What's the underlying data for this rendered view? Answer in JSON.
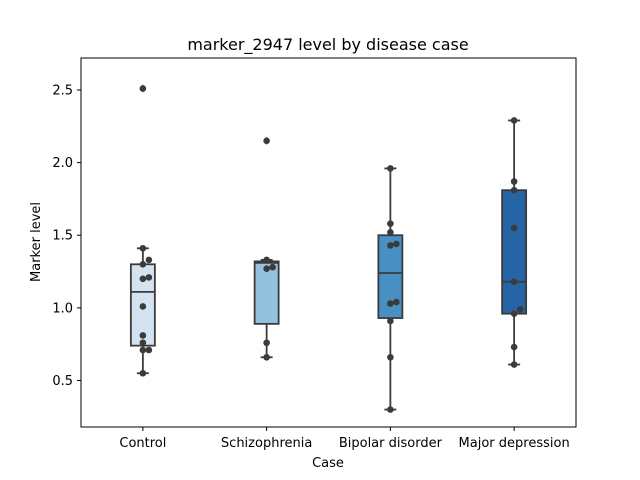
{
  "chart_data": {
    "type": "box",
    "title": "marker_2947 level by disease case",
    "xlabel": "Case",
    "ylabel": "Marker level",
    "ylim": [
      0.18,
      2.72
    ],
    "yticks": [
      "0.5",
      "1.0",
      "1.5",
      "2.0",
      "2.5"
    ],
    "categories": [
      "Control",
      "Schizophrenia",
      "Bipolar disorder",
      "Major depression"
    ],
    "colors": [
      "#d4e3f1",
      "#94c1de",
      "#4890c4",
      "#2665a5"
    ],
    "edge_color": "#3b3b3b",
    "point_color": "#3b3b3b",
    "boxes": [
      {
        "whisker_low": 0.55,
        "q1": 0.74,
        "median": 1.11,
        "q3": 1.3,
        "whisker_high": 1.41,
        "outliers": [
          2.51
        ]
      },
      {
        "whisker_low": 0.66,
        "q1": 0.89,
        "median": 1.31,
        "q3": 1.32,
        "whisker_high": 1.33,
        "outliers": [
          2.15
        ]
      },
      {
        "whisker_low": 0.3,
        "q1": 0.93,
        "median": 1.24,
        "q3": 1.5,
        "whisker_high": 1.96,
        "outliers": []
      },
      {
        "whisker_low": 0.61,
        "q1": 0.96,
        "median": 1.18,
        "q3": 1.81,
        "whisker_high": 2.29,
        "outliers": []
      }
    ],
    "points": [
      [
        0.55,
        0.71,
        0.71,
        0.76,
        0.81,
        1.01,
        1.2,
        1.21,
        1.3,
        1.33,
        1.41,
        2.51
      ],
      [
        0.66,
        0.76,
        1.27,
        1.28,
        1.33,
        2.15
      ],
      [
        0.3,
        0.66,
        0.91,
        1.03,
        1.04,
        1.43,
        1.44,
        1.52,
        1.58,
        1.96
      ],
      [
        0.61,
        0.73,
        0.96,
        0.99,
        1.18,
        1.55,
        1.81,
        1.87,
        2.29
      ]
    ]
  }
}
